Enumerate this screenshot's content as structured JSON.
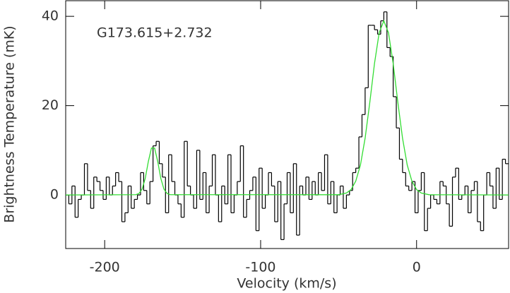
{
  "chart_data": {
    "type": "step",
    "annotation": "G173.615+2.732",
    "x_label": "Velocity (km/s)",
    "y_label": "Brightness Temperature (mK)",
    "xlim": [
      -225,
      59
    ],
    "ylim": [
      -12,
      43.5
    ],
    "xticks": [
      -200,
      -100,
      0
    ],
    "yticks": [
      0,
      20,
      40
    ],
    "series": [
      {
        "color": "#000000",
        "x": [
          -224,
          -222,
          -220,
          -218,
          -216,
          -214,
          -212,
          -210,
          -208,
          -206,
          -204,
          -202,
          -200,
          -198,
          -196,
          -194,
          -192,
          -190,
          -188,
          -186,
          -184,
          -182,
          -180,
          -178,
          -176,
          -174,
          -172,
          -170,
          -168,
          -166,
          -164,
          -162,
          -160,
          -158,
          -156,
          -154,
          -152,
          -150,
          -148,
          -146,
          -144,
          -142,
          -140,
          -138,
          -136,
          -134,
          -132,
          -130,
          -128,
          -126,
          -124,
          -122,
          -120,
          -118,
          -116,
          -114,
          -112,
          -110,
          -108,
          -106,
          -104,
          -102,
          -100,
          -98,
          -96,
          -94,
          -92,
          -90,
          -88,
          -86,
          -84,
          -82,
          -80,
          -78,
          -76,
          -74,
          -72,
          -70,
          -68,
          -66,
          -64,
          -62,
          -60,
          -58,
          -56,
          -54,
          -52,
          -50,
          -48,
          -46,
          -44,
          -42,
          -40,
          -38,
          -36,
          -34,
          -32,
          -30,
          -28,
          -26,
          -24,
          -22,
          -20,
          -18,
          -16,
          -14,
          -12,
          -10,
          -8,
          -6,
          -4,
          -2,
          0,
          2,
          4,
          6,
          8,
          10,
          12,
          14,
          16,
          18,
          20,
          22,
          24,
          26,
          28,
          30,
          32,
          34,
          36,
          38,
          40,
          42,
          44,
          46,
          48,
          50,
          52,
          54,
          56,
          58
        ],
        "values": [
          0,
          -2,
          2,
          -5,
          -1,
          0,
          7,
          1,
          -3,
          4,
          3,
          1,
          -1,
          4,
          0,
          2,
          5,
          3,
          -6,
          -4,
          2,
          -3,
          -1,
          0,
          5,
          1,
          -2,
          3,
          11,
          12,
          7,
          4,
          -4,
          9,
          3,
          0,
          -2,
          -5,
          12,
          2,
          0,
          -3,
          10,
          -1,
          5,
          -4,
          2,
          9,
          0,
          -6,
          2,
          -2,
          9,
          -4,
          0,
          3,
          11,
          -5,
          -1,
          1,
          4,
          -8,
          6,
          -3,
          0,
          5,
          2,
          -6,
          3,
          -10,
          -2,
          5,
          -4,
          7,
          -9,
          2,
          0,
          4,
          -1,
          3,
          0,
          5,
          1,
          9,
          -2,
          3,
          -4,
          0,
          2,
          -3,
          0,
          1,
          5,
          6,
          13,
          18,
          24,
          38,
          38,
          37,
          36,
          39,
          41,
          33,
          31,
          22,
          15,
          8,
          5,
          2,
          1,
          3,
          -4,
          1,
          5,
          -8,
          -3,
          0,
          -1,
          -2,
          3,
          2,
          -2,
          -7,
          4,
          6,
          -1,
          0,
          2,
          -4,
          1,
          3,
          -6,
          -8,
          0,
          5,
          2,
          -3,
          6,
          -1,
          8,
          7
        ]
      },
      {
        "type": "line",
        "color": "#33dd33",
        "x": [
          -225,
          -180,
          -178,
          -176,
          -174,
          -172,
          -170,
          -168,
          -166,
          -164,
          -162,
          -160,
          -158,
          -50,
          -45,
          -42,
          -39,
          -36,
          -33,
          -30,
          -27,
          -24,
          -21,
          -18,
          -15,
          -12,
          -9,
          -6,
          -3,
          0,
          3,
          8,
          59
        ],
        "values": [
          0,
          0.06,
          0.33,
          1.3,
          3.7,
          7.5,
          10.5,
          10.5,
          7.5,
          3.7,
          1.3,
          0.33,
          0.06,
          0.05,
          0.43,
          1.2,
          3.1,
          6.7,
          12.7,
          20.7,
          29.4,
          36.3,
          39,
          36.3,
          29.4,
          20.7,
          12.7,
          6.7,
          3.1,
          1.2,
          0.43,
          0.05,
          0
        ]
      }
    ]
  }
}
